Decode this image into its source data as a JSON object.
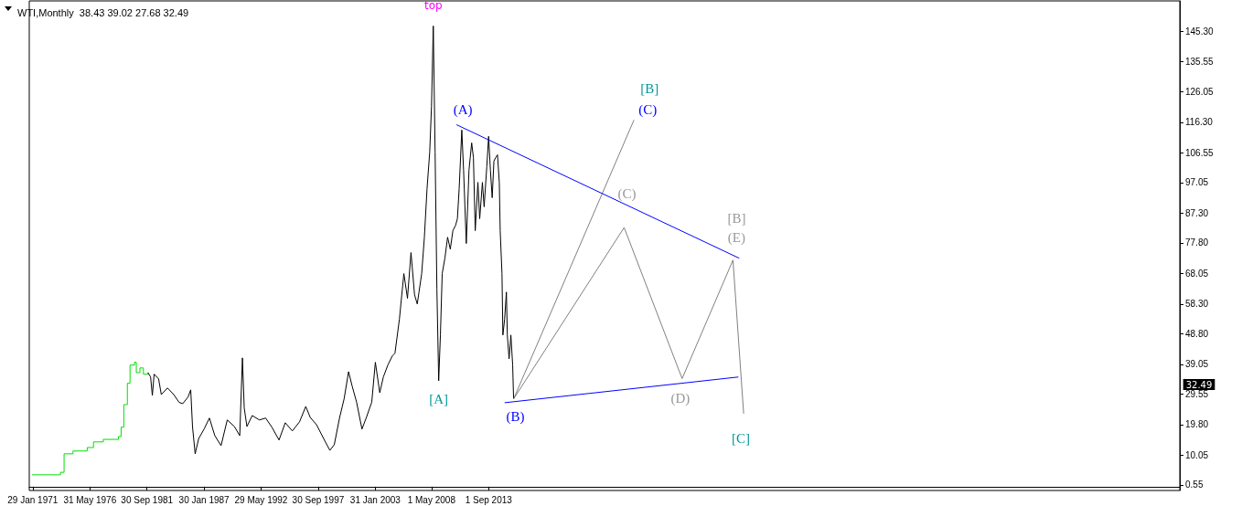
{
  "chart_data": {
    "type": "line",
    "title": "WTI,Monthly  38.43 39.02 27.68 32.49",
    "xlim": [
      "1970-10",
      "2078-04"
    ],
    "xticks": [
      {
        "value": "1971-01-29",
        "label": "29 Jan 1971"
      },
      {
        "value": "1976-05-31",
        "label": "31 May 1976"
      },
      {
        "value": "1981-09-30",
        "label": "30 Sep 1981"
      },
      {
        "value": "1987-01-30",
        "label": "30 Jan 1987"
      },
      {
        "value": "1992-05-29",
        "label": "29 May 1992"
      },
      {
        "value": "1997-09-30",
        "label": "30 Sep 1997"
      },
      {
        "value": "2003-01-31",
        "label": "31 Jan 2003"
      },
      {
        "value": "2008-05-01",
        "label": "1 May 2008"
      },
      {
        "value": "2013-09-01",
        "label": "1 Sep 2013"
      }
    ],
    "ylim": [
      -1.2,
      155
    ],
    "yticks": [
      0.55,
      10.05,
      {
        "value": 19.8,
        "label": "19.80"
      },
      29.55,
      39.05,
      {
        "value": 48.8,
        "label": "48.80"
      },
      {
        "value": 58.3,
        "label": "58.30"
      },
      68.05,
      {
        "value": 77.8,
        "label": "77.80"
      },
      {
        "value": 87.3,
        "label": "87.30"
      },
      97.05,
      106.55,
      {
        "value": 116.3,
        "label": "116.30"
      },
      126.05,
      135.55,
      {
        "value": 145.3,
        "label": "145.30"
      }
    ],
    "marker": "none",
    "line_style": "solid",
    "series": [
      {
        "type": "step",
        "color": "#00e000",
        "x": [
          "1971-01",
          "1973-06",
          "1973-09",
          "1973-12",
          "1974-01",
          "1974-11",
          "1976-03",
          "1976-10",
          "1977-09",
          "1979-02",
          "1979-05",
          "1979-08",
          "1979-12",
          "1980-03",
          "1980-08",
          "1980-10",
          "1981-02",
          "1981-06",
          "1981-11"
        ],
        "values": [
          3.8,
          3.8,
          4.6,
          4.6,
          10.5,
          11.4,
          12.5,
          14.3,
          15.1,
          16.0,
          19.0,
          26.2,
          33.0,
          38.8,
          39.7,
          36.4,
          37.9,
          35.9,
          36.4
        ]
      },
      {
        "color": "#000000",
        "x": [
          "1981-11",
          "1982-02",
          "1982-04",
          "1982-06",
          "1982-11",
          "1983-02",
          "1983-09",
          "1984-04",
          "1984-10",
          "1985-02",
          "1985-08",
          "1985-11",
          "1986-01",
          "1986-04",
          "1986-08",
          "1987-02",
          "1987-08",
          "1988-02",
          "1988-09",
          "1989-04",
          "1989-12",
          "1990-06",
          "1990-09",
          "1990-11",
          "1991-02",
          "1991-08",
          "1992-04",
          "1992-11",
          "1993-06",
          "1994-02",
          "1994-09",
          "1995-05",
          "1996-01",
          "1996-08",
          "1997-01",
          "1997-08",
          "1998-04",
          "1998-11",
          "1999-04",
          "1999-10",
          "2000-03",
          "2000-08",
          "2000-12",
          "2001-05",
          "2001-11",
          "2002-04",
          "2002-10",
          "2003-02",
          "2003-07",
          "2003-11",
          "2004-04",
          "2004-09",
          "2004-12",
          "2005-05",
          "2005-10",
          "2006-02",
          "2006-06",
          "2006-10",
          "2007-01",
          "2007-03",
          "2007-06",
          "2007-09",
          "2007-12",
          "2008-03",
          "2008-05",
          "2008-07",
          "2008-09",
          "2008-11",
          "2009-01",
          "2009-03",
          "2009-05",
          "2009-08",
          "2009-11",
          "2010-02",
          "2010-05",
          "2010-08",
          "2010-10",
          "2010-12",
          "2011-03",
          "2011-05",
          "2011-08",
          "2011-11",
          "2012-02",
          "2012-04",
          "2012-06",
          "2012-09",
          "2012-11",
          "2013-02",
          "2013-04",
          "2013-07",
          "2013-09",
          "2013-11",
          "2014-01",
          "2014-03",
          "2014-05",
          "2014-07",
          "2014-09",
          "2014-10",
          "2014-12",
          "2015-01",
          "2015-03",
          "2015-05",
          "2015-06",
          "2015-08",
          "2015-10",
          "2015-12",
          "2016-01"
        ],
        "values": [
          36.4,
          35.0,
          29.1,
          35.9,
          34.4,
          29.4,
          31.5,
          29.4,
          26.9,
          26.5,
          28.6,
          30.9,
          19.2,
          10.5,
          15.4,
          18.4,
          21.9,
          16.3,
          13.1,
          21.3,
          19.2,
          16.3,
          41.1,
          25.1,
          19.2,
          22.7,
          21.3,
          21.9,
          19.0,
          14.9,
          20.4,
          17.8,
          20.7,
          25.6,
          22.1,
          19.8,
          15.4,
          11.6,
          13.4,
          22.1,
          28.0,
          36.7,
          32.1,
          27.0,
          18.4,
          22.1,
          27.0,
          39.7,
          30.0,
          35.0,
          38.8,
          41.7,
          42.6,
          53.4,
          68.0,
          60.1,
          74.7,
          61.2,
          58.3,
          62.1,
          68.0,
          79.6,
          95.1,
          106.8,
          121.4,
          147.0,
          106.8,
          63.0,
          33.8,
          48.4,
          68.0,
          72.9,
          79.6,
          75.8,
          81.7,
          83.4,
          85.5,
          95.1,
          113.8,
          101.0,
          77.6,
          101.0,
          109.7,
          105.0,
          81.7,
          97.1,
          85.5,
          97.1,
          89.3,
          102.1,
          111.8,
          101.0,
          92.2,
          103.9,
          105.0,
          105.9,
          97.1,
          81.7,
          68.0,
          48.4,
          53.4,
          62.1,
          48.4,
          40.8,
          48.4,
          38.8,
          28.0
        ]
      },
      {
        "color": "#808080",
        "x": [
          "2016-01",
          "2027-04"
        ],
        "values": [
          28.0,
          117
        ]
      },
      {
        "color": "#808080",
        "x": [
          "2016-01",
          "2026-05",
          "2031-10",
          "2036-07",
          "2037-07"
        ],
        "values": [
          28.0,
          82.7,
          34.5,
          72.3,
          23.3
        ]
      },
      {
        "color": "#0000ff",
        "x": [
          "2010-09",
          "2037-02"
        ],
        "values": [
          115.5,
          72.9
        ]
      },
      {
        "color": "#0000ff",
        "x": [
          "2015-03",
          "2037-01"
        ],
        "values": [
          26.8,
          35.0
        ]
      }
    ],
    "annotations": [
      "32.49",
      {
        "text": "top",
        "x": "2008-07",
        "y": 147.0
      },
      {
        "text": "(A)",
        "x": "2010-09",
        "y": 115.5
      },
      {
        "text": "[A]",
        "x": "2009-01",
        "y": 33.8
      },
      {
        "text": "(B)",
        "x": "2016-01",
        "y": 28.0
      },
      {
        "text": "[B]",
        "x": "2027-04",
        "y": 117
      },
      {
        "text": "(C)",
        "x": "2027-04",
        "y": 117
      },
      {
        "text": "(C)",
        "x": "2026-05",
        "y": 82.7
      },
      {
        "text": "[B]",
        "x": "2036-07",
        "y": 72.3
      },
      {
        "text": "(E)",
        "x": "2036-07",
        "y": 72.3
      },
      {
        "text": "(D)",
        "x": "2031-10",
        "y": 34.5
      },
      {
        "text": "[C]",
        "x": "2037-07",
        "y": 23.3
      }
    ]
  }
}
